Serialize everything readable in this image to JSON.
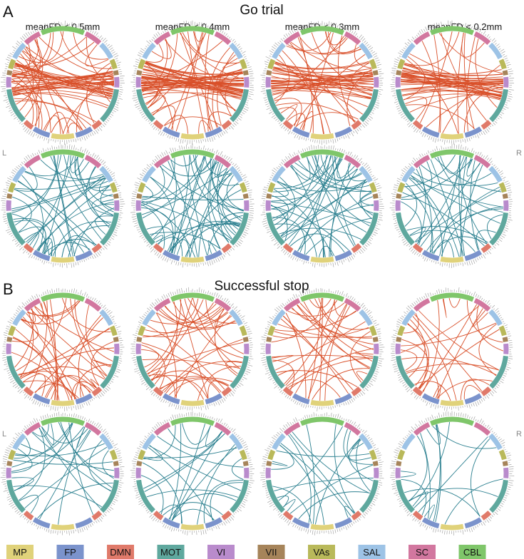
{
  "panels": [
    {
      "letter": "A",
      "title": "Go trial"
    },
    {
      "letter": "B",
      "title": "Successful stop"
    }
  ],
  "column_titles": [
    "meanFD < 0.5mm",
    "meanFD < 0.4mm",
    "meanFD < 0.3mm",
    "meanFD < 0.2mm"
  ],
  "side_labels": {
    "left": "L",
    "right": "R"
  },
  "chord_colors": {
    "positive": "#d9502a",
    "negative": "#2a7f8f"
  },
  "networks": [
    {
      "name": "MP",
      "color": "#e0d27a"
    },
    {
      "name": "FP",
      "color": "#7b93cc"
    },
    {
      "name": "DMN",
      "color": "#e07a6a"
    },
    {
      "name": "MOT",
      "color": "#5fa89e"
    },
    {
      "name": "VI",
      "color": "#b98bcc"
    },
    {
      "name": "VII",
      "color": "#a6845a"
    },
    {
      "name": "VAs",
      "color": "#b9b95a"
    },
    {
      "name": "SAL",
      "color": "#9dc3e6"
    },
    {
      "name": "SC",
      "color": "#d2779f"
    },
    {
      "name": "CBL",
      "color": "#7fc66a"
    }
  ]
}
